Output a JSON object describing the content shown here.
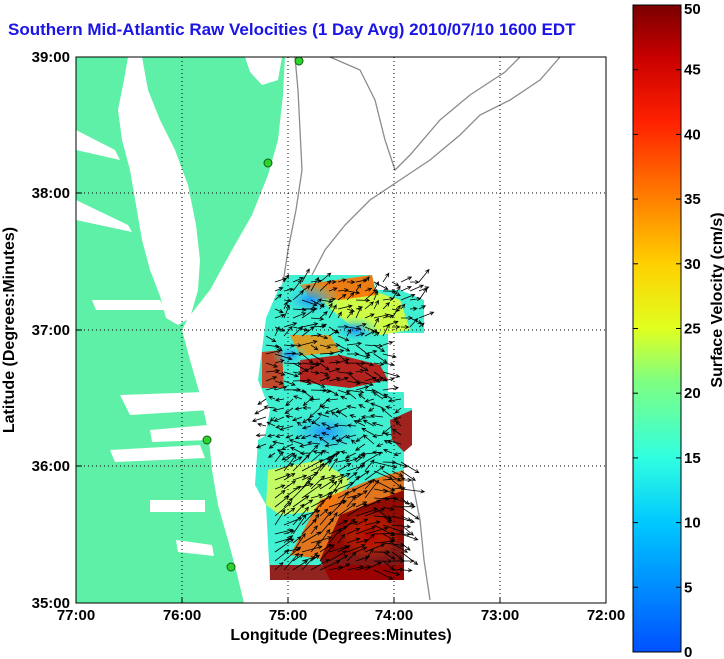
{
  "title": "Southern Mid-Atlantic Raw Velocities (1 Day Avg) 2010/07/10 1600 EDT",
  "axes": {
    "xlabel": "Longitude (Degrees:Minutes)",
    "ylabel": "Latitude (Degrees:Minutes)",
    "x_ticks": [
      "77:00",
      "76:00",
      "75:00",
      "74:00",
      "73:00",
      "72:00"
    ],
    "y_ticks": [
      "39:00",
      "38:00",
      "37:00",
      "36:00",
      "35:00"
    ],
    "xlim": [
      -77,
      -72
    ],
    "ylim": [
      35,
      39
    ],
    "grid": "dotted"
  },
  "colorbar": {
    "label": "Surface Velocity (cm/s)",
    "ticks": [
      "0",
      "5",
      "10",
      "15",
      "20",
      "25",
      "30",
      "35",
      "40",
      "45",
      "50"
    ],
    "range": [
      0,
      50
    ],
    "colormap": "jet"
  },
  "colors": {
    "land": "#5ef0a6",
    "water": "#ffffff",
    "bathymetry": "#8c8c8c",
    "station": "#2fd12f",
    "title": "#1a14e6"
  }
}
